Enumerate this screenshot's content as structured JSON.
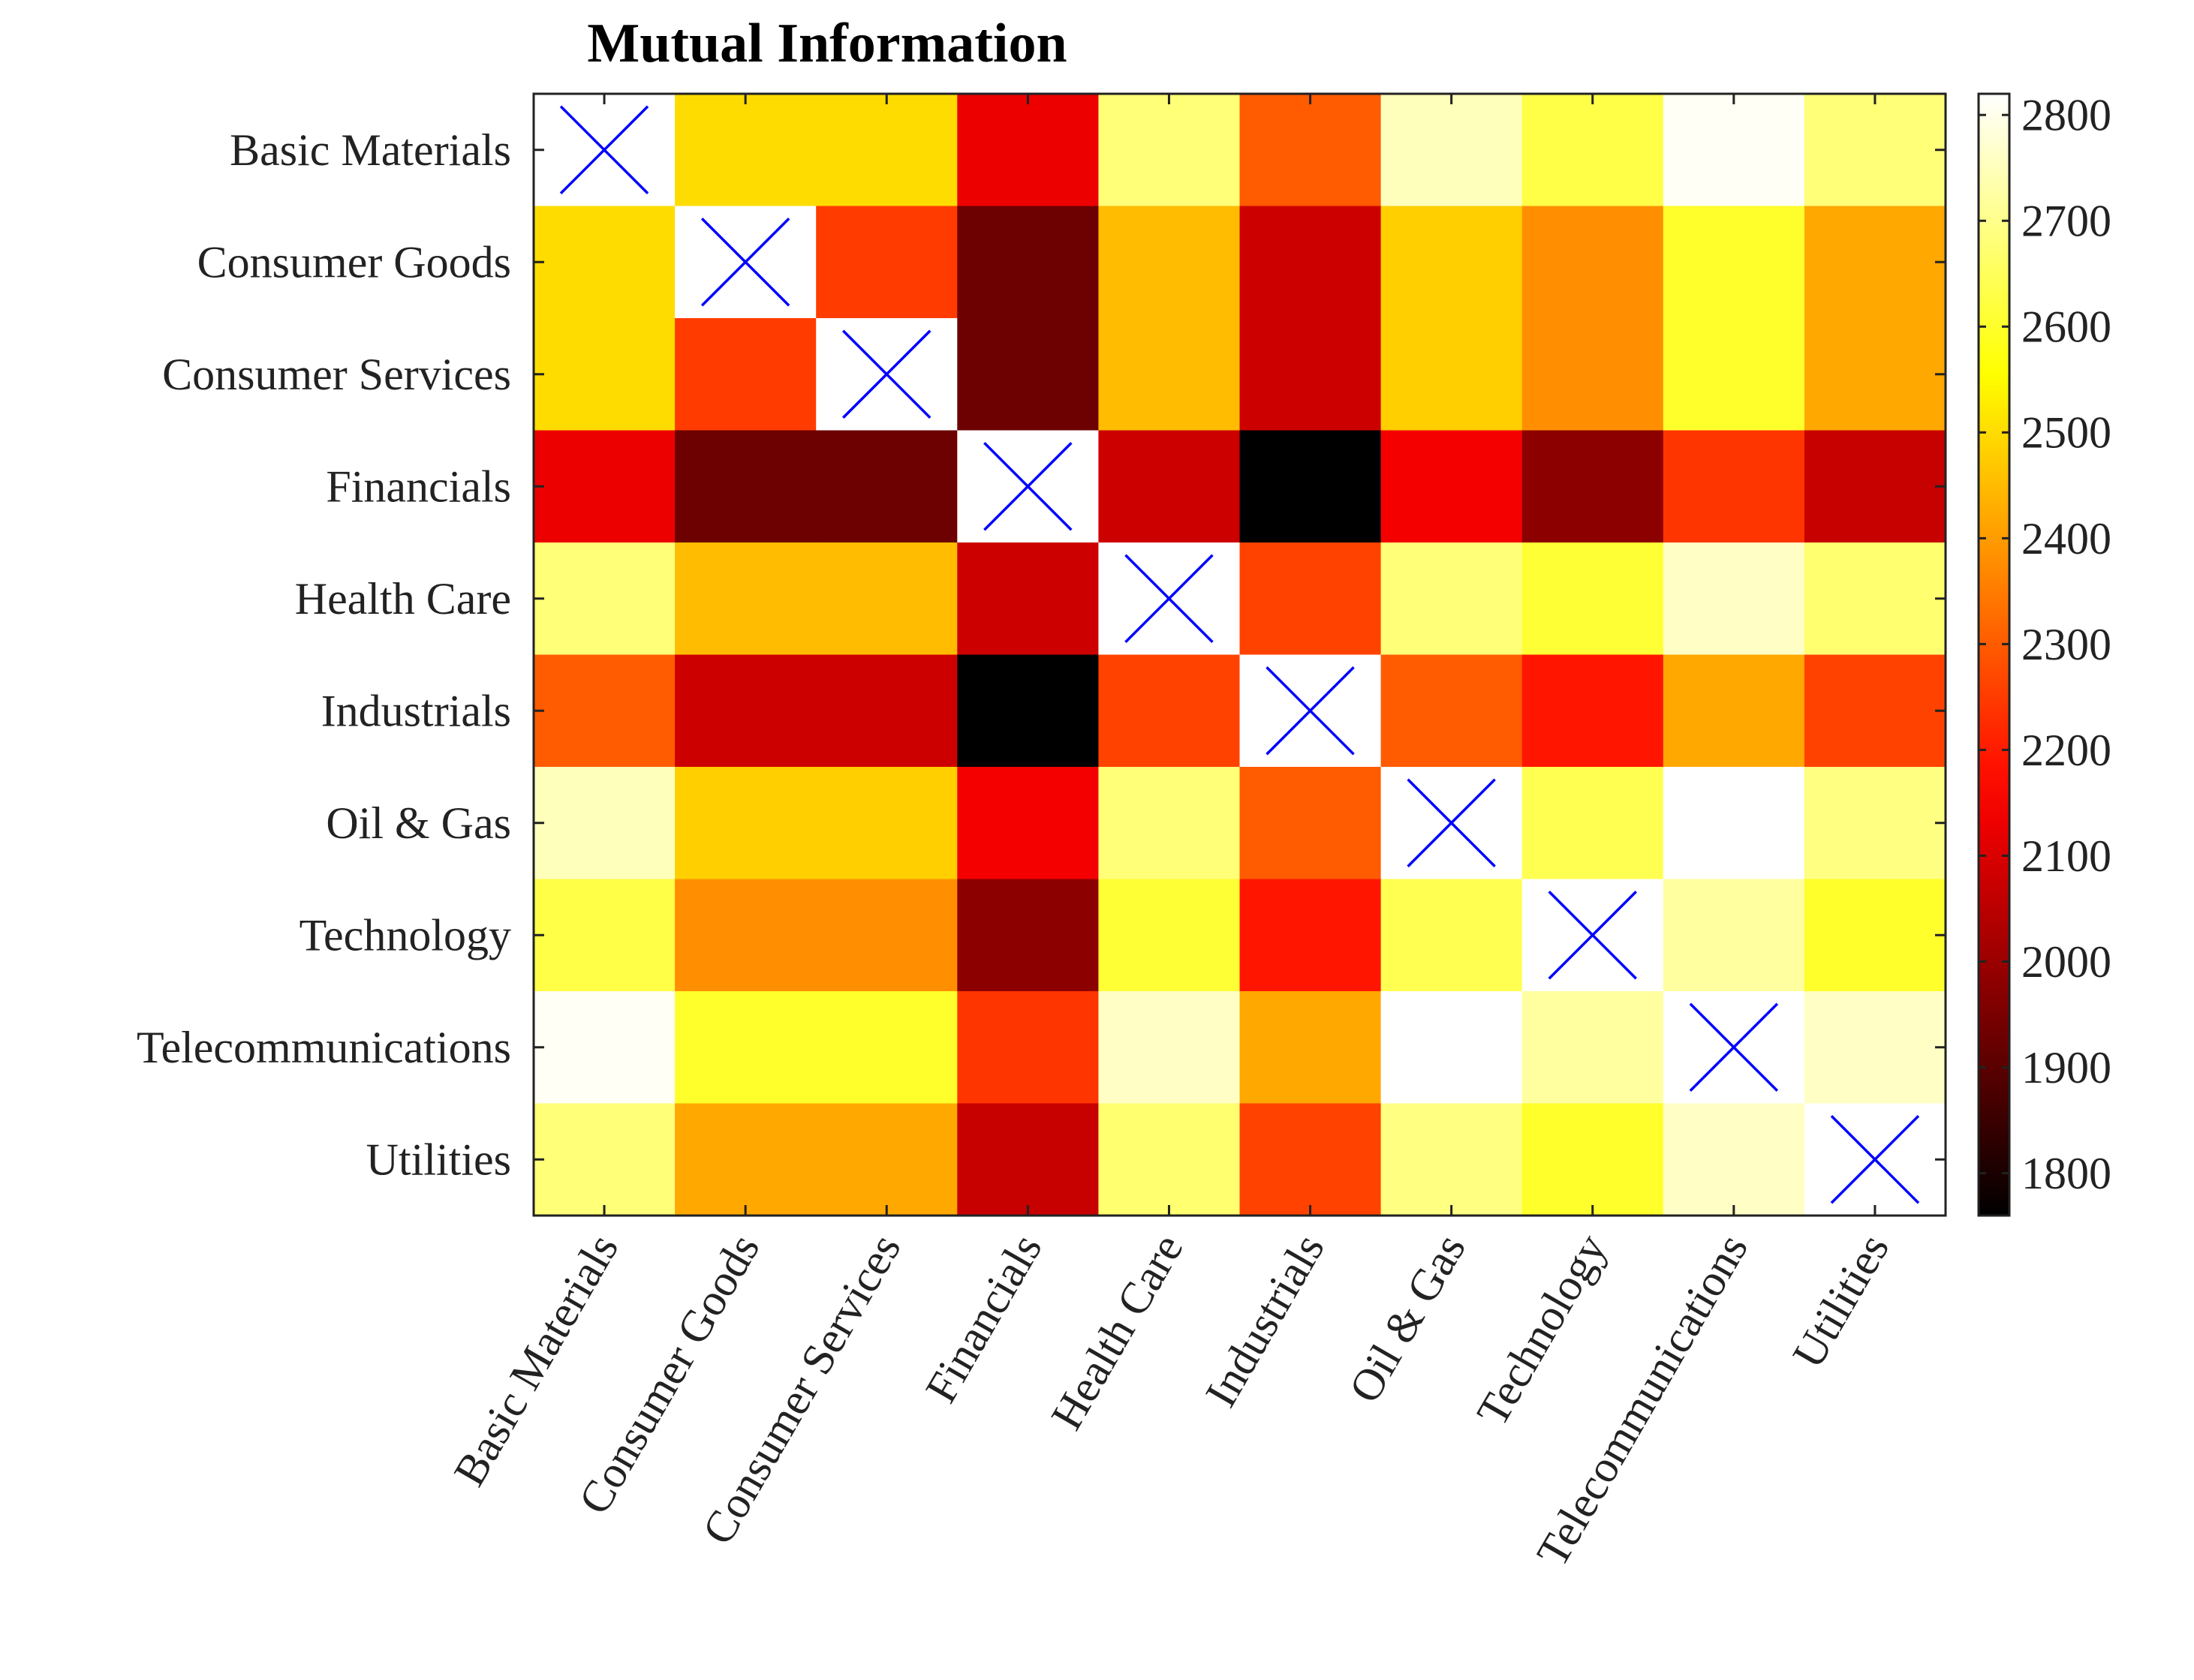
{
  "chart_data": {
    "type": "heatmap",
    "title": "Mutual Information",
    "xlabel": "",
    "ylabel": "",
    "rows": [
      "Basic Materials",
      "Consumer Goods",
      "Consumer Services",
      "Financials",
      "Health Care",
      "Industrials",
      "Oil & Gas",
      "Technology",
      "Telecommunications",
      "Utilities"
    ],
    "columns": [
      "Basic Materials",
      "Consumer Goods",
      "Consumer Services",
      "Financials",
      "Health Care",
      "Industrials",
      "Oil & Gas",
      "Technology",
      "Telecommunications",
      "Utilities"
    ],
    "values": [
      [
        null,
        2500,
        2500,
        2130,
        2680,
        2300,
        2750,
        2630,
        2810,
        2680
      ],
      [
        2500,
        null,
        2250,
        1930,
        2450,
        2080,
        2480,
        2380,
        2600,
        2420
      ],
      [
        2500,
        2250,
        null,
        1930,
        2450,
        2080,
        2480,
        2380,
        2600,
        2420
      ],
      [
        2130,
        1930,
        1930,
        null,
        2080,
        1760,
        2140,
        1980,
        2240,
        2070
      ],
      [
        2680,
        2450,
        2450,
        2080,
        null,
        2260,
        2680,
        2610,
        2760,
        2670
      ],
      [
        2300,
        2080,
        2080,
        1760,
        2260,
        null,
        2300,
        2190,
        2420,
        2260
      ],
      [
        2750,
        2480,
        2480,
        2140,
        2680,
        2300,
        null,
        2640,
        2820,
        2690
      ],
      [
        2630,
        2380,
        2380,
        1980,
        2610,
        2190,
        2640,
        null,
        2720,
        2600
      ],
      [
        2810,
        2600,
        2600,
        2240,
        2760,
        2420,
        2820,
        2720,
        null,
        2760
      ],
      [
        2680,
        2420,
        2420,
        2070,
        2670,
        2260,
        2690,
        2600,
        2760,
        null
      ]
    ],
    "diagonal_marker": "X",
    "marker_color": "#0000ff",
    "colormap": "hot",
    "colorbar": {
      "range": [
        1760,
        2820
      ],
      "ticks": [
        1800,
        1900,
        2000,
        2100,
        2200,
        2300,
        2400,
        2500,
        2600,
        2700,
        2800
      ]
    }
  }
}
